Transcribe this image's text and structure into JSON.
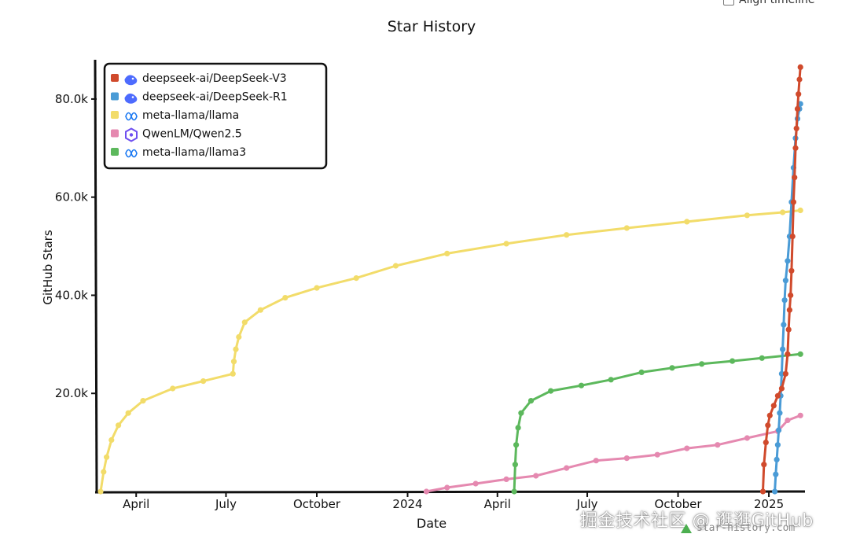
{
  "controls": {
    "align_label": "Align timeline"
  },
  "watermark": "掘金技术社区 @ 逛逛GitHub",
  "credit": "star-history.com",
  "colors": {
    "v3": "#d04a2c",
    "r1": "#4a9bd6",
    "llama": "#f2dc6a",
    "qwen": "#e589b0",
    "llama3": "#5cb85c"
  },
  "chart_data": {
    "type": "line",
    "title": "Star History",
    "xlabel": "Date",
    "ylabel": "GitHub Stars",
    "ylim": [
      0,
      88000
    ],
    "xlim": [
      "2023-02-20",
      "2025-02-05"
    ],
    "y_ticks": [
      {
        "value": 20000,
        "label": "20.0k"
      },
      {
        "value": 40000,
        "label": "40.0k"
      },
      {
        "value": 60000,
        "label": "60.0k"
      },
      {
        "value": 80000,
        "label": "80.0k"
      }
    ],
    "x_ticks": [
      {
        "date": "2023-04-01",
        "label": "April"
      },
      {
        "date": "2023-07-01",
        "label": "July"
      },
      {
        "date": "2023-10-01",
        "label": "October"
      },
      {
        "date": "2024-01-01",
        "label": "2024"
      },
      {
        "date": "2024-04-01",
        "label": "April"
      },
      {
        "date": "2024-07-01",
        "label": "July"
      },
      {
        "date": "2024-10-01",
        "label": "October"
      },
      {
        "date": "2025-01-01",
        "label": "2025"
      }
    ],
    "legend_position": "top-left",
    "series": [
      {
        "name": "deepseek-ai/DeepSeek-V3",
        "color_key": "v3",
        "icon": "whale-icon",
        "points": [
          [
            "2024-12-26",
            0
          ],
          [
            "2024-12-27",
            5500
          ],
          [
            "2024-12-29",
            10000
          ],
          [
            "2024-12-31",
            13500
          ],
          [
            "2025-01-02",
            15500
          ],
          [
            "2025-01-06",
            17500
          ],
          [
            "2025-01-10",
            19500
          ],
          [
            "2025-01-14",
            21000
          ],
          [
            "2025-01-18",
            24000
          ],
          [
            "2025-01-20",
            28000
          ],
          [
            "2025-01-21",
            33000
          ],
          [
            "2025-01-22",
            37000
          ],
          [
            "2025-01-23",
            40000
          ],
          [
            "2025-01-24",
            45000
          ],
          [
            "2025-01-25",
            52000
          ],
          [
            "2025-01-26",
            59000
          ],
          [
            "2025-01-27",
            64000
          ],
          [
            "2025-01-28",
            70000
          ],
          [
            "2025-01-29",
            74000
          ],
          [
            "2025-01-30",
            78000
          ],
          [
            "2025-01-31",
            81000
          ],
          [
            "2025-02-01",
            84000
          ],
          [
            "2025-02-02",
            86500
          ]
        ]
      },
      {
        "name": "deepseek-ai/DeepSeek-R1",
        "color_key": "r1",
        "icon": "whale-icon",
        "points": [
          [
            "2025-01-07",
            0
          ],
          [
            "2025-01-08",
            3500
          ],
          [
            "2025-01-09",
            6500
          ],
          [
            "2025-01-10",
            9500
          ],
          [
            "2025-01-11",
            12500
          ],
          [
            "2025-01-12",
            16000
          ],
          [
            "2025-01-13",
            19500
          ],
          [
            "2025-01-14",
            24000
          ],
          [
            "2025-01-15",
            29000
          ],
          [
            "2025-01-16",
            34000
          ],
          [
            "2025-01-17",
            39000
          ],
          [
            "2025-01-18",
            43000
          ],
          [
            "2025-01-20",
            47000
          ],
          [
            "2025-01-22",
            52000
          ],
          [
            "2025-01-24",
            59000
          ],
          [
            "2025-01-26",
            66000
          ],
          [
            "2025-01-28",
            72000
          ],
          [
            "2025-01-30",
            76000
          ],
          [
            "2025-02-01",
            78000
          ],
          [
            "2025-02-02",
            79000
          ]
        ]
      },
      {
        "name": "meta-llama/llama",
        "color_key": "llama",
        "icon": "meta-icon",
        "points": [
          [
            "2023-02-24",
            0
          ],
          [
            "2023-02-27",
            4000
          ],
          [
            "2023-03-02",
            7000
          ],
          [
            "2023-03-07",
            10500
          ],
          [
            "2023-03-14",
            13500
          ],
          [
            "2023-03-24",
            16000
          ],
          [
            "2023-04-08",
            18500
          ],
          [
            "2023-05-08",
            21000
          ],
          [
            "2023-06-08",
            22500
          ],
          [
            "2023-07-08",
            24000
          ],
          [
            "2023-07-09",
            26500
          ],
          [
            "2023-07-11",
            29000
          ],
          [
            "2023-07-14",
            31500
          ],
          [
            "2023-07-20",
            34500
          ],
          [
            "2023-08-05",
            37000
          ],
          [
            "2023-08-30",
            39500
          ],
          [
            "2023-10-01",
            41500
          ],
          [
            "2023-11-10",
            43500
          ],
          [
            "2023-12-20",
            46000
          ],
          [
            "2024-02-10",
            48500
          ],
          [
            "2024-04-10",
            50500
          ],
          [
            "2024-06-10",
            52300
          ],
          [
            "2024-08-10",
            53700
          ],
          [
            "2024-10-10",
            55000
          ],
          [
            "2024-12-10",
            56300
          ],
          [
            "2025-01-15",
            56900
          ],
          [
            "2025-02-02",
            57300
          ]
        ]
      },
      {
        "name": "QwenLM/Qwen2.5",
        "color_key": "qwen",
        "icon": "qwen-icon",
        "points": [
          [
            "2024-01-20",
            0
          ],
          [
            "2024-02-10",
            800
          ],
          [
            "2024-03-10",
            1600
          ],
          [
            "2024-04-10",
            2500
          ],
          [
            "2024-05-10",
            3200
          ],
          [
            "2024-06-10",
            4800
          ],
          [
            "2024-07-10",
            6300
          ],
          [
            "2024-08-10",
            6800
          ],
          [
            "2024-09-10",
            7500
          ],
          [
            "2024-10-10",
            8800
          ],
          [
            "2024-11-10",
            9500
          ],
          [
            "2024-12-10",
            10900
          ],
          [
            "2025-01-10",
            12300
          ],
          [
            "2025-01-20",
            14500
          ],
          [
            "2025-02-02",
            15500
          ]
        ]
      },
      {
        "name": "meta-llama/llama3",
        "color_key": "llama3",
        "icon": "meta-icon",
        "points": [
          [
            "2024-04-18",
            0
          ],
          [
            "2024-04-19",
            5500
          ],
          [
            "2024-04-20",
            9500
          ],
          [
            "2024-04-22",
            13000
          ],
          [
            "2024-04-25",
            16000
          ],
          [
            "2024-05-05",
            18500
          ],
          [
            "2024-05-25",
            20500
          ],
          [
            "2024-06-25",
            21600
          ],
          [
            "2024-07-25",
            22800
          ],
          [
            "2024-08-25",
            24300
          ],
          [
            "2024-09-25",
            25200
          ],
          [
            "2024-10-25",
            26000
          ],
          [
            "2024-11-25",
            26600
          ],
          [
            "2024-12-25",
            27200
          ],
          [
            "2025-02-02",
            28000
          ]
        ]
      }
    ]
  }
}
